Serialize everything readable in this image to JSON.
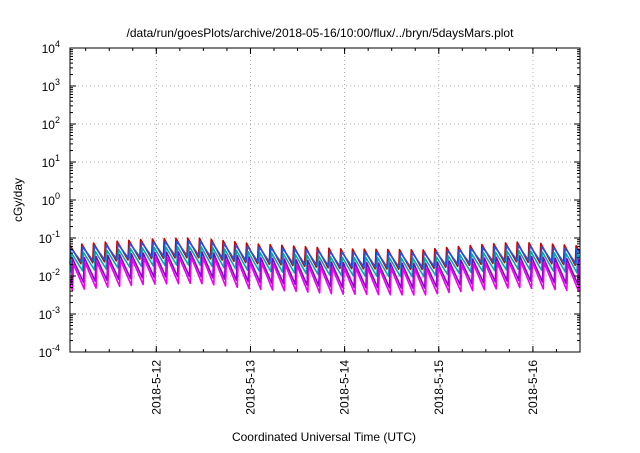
{
  "chart_data": {
    "type": "line",
    "title": "/data/run/goesPlots/archive/2018-05-16/10:00/flux/../bryn/5daysMars.plot",
    "xlabel": "Coordinated Universal Time (UTC)",
    "ylabel": "cGy/day",
    "yscale": "log",
    "ylim": [
      0.0001,
      10000
    ],
    "xlim": [
      "2018-05-11 02:00",
      "2018-05-16 12:00"
    ],
    "x_ticks": [
      "2018-5-12",
      "2018-5-13",
      "2018-5-14",
      "2018-5-15",
      "2018-5-16"
    ],
    "y_ticks": [
      {
        "base": "10",
        "exp": "4"
      },
      {
        "base": "10",
        "exp": "3"
      },
      {
        "base": "10",
        "exp": "2"
      },
      {
        "base": "10",
        "exp": "1"
      },
      {
        "base": "10",
        "exp": "0"
      },
      {
        "base": "10",
        "exp": "-1"
      },
      {
        "base": "10",
        "exp": "-2"
      },
      {
        "base": "10",
        "exp": "-3"
      },
      {
        "base": "10",
        "exp": "-4"
      }
    ],
    "grid": true,
    "series": [
      {
        "color": "#cc0000",
        "cycle_hours": 3,
        "peak": 0.065,
        "trough": 0.018
      },
      {
        "color": "#2255dd",
        "cycle_hours": 3,
        "peak": 0.055,
        "trough": 0.02
      },
      {
        "color": "#00aaaa",
        "cycle_hours": 3,
        "peak": 0.04,
        "trough": 0.012
      },
      {
        "color": "#8800cc",
        "cycle_hours": 3,
        "peak": 0.03,
        "trough": 0.006
      },
      {
        "color": "#ee00ee",
        "cycle_hours": 3,
        "peak": 0.022,
        "trough": 0.004
      }
    ],
    "envelope_days": [
      {
        "date": "2018-05-11 02:00",
        "level": 1.0
      },
      {
        "date": "2018-05-11 22:00",
        "level": 1.45
      },
      {
        "date": "2018-05-12 10:00",
        "level": 1.55
      },
      {
        "date": "2018-05-13 00:00",
        "level": 1.1
      },
      {
        "date": "2018-05-13 22:00",
        "level": 0.8
      },
      {
        "date": "2018-05-14 20:00",
        "level": 0.75
      },
      {
        "date": "2018-05-15 20:00",
        "level": 1.2
      },
      {
        "date": "2018-05-16 12:00",
        "level": 0.95
      }
    ]
  }
}
